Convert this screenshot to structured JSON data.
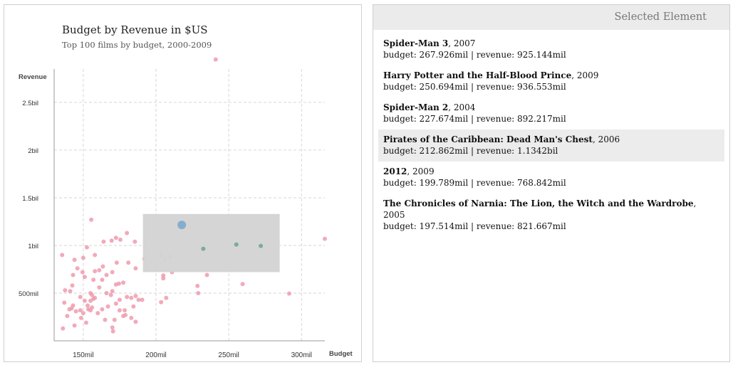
{
  "chart_data": {
    "type": "scatter",
    "title": "Budget by Revenue in $US",
    "subtitle": "Top 100 films by budget, 2000-2009",
    "xlabel": "Budget",
    "ylabel": "Revenue",
    "xlim": [
      130,
      316
    ],
    "ylim": [
      0,
      2.85
    ],
    "x_ticks": [
      {
        "v": 150,
        "label": "150mil"
      },
      {
        "v": 200,
        "label": "200mil"
      },
      {
        "v": 250,
        "label": "250mil"
      },
      {
        "v": 300,
        "label": "300mil"
      }
    ],
    "y_ticks": [
      {
        "v": 0.5,
        "label": "500mil"
      },
      {
        "v": 1,
        "label": "1bil"
      },
      {
        "v": 1.5,
        "label": "1.5bil"
      },
      {
        "v": 2,
        "label": "2bil"
      },
      {
        "v": 2.5,
        "label": "2.5bil"
      }
    ],
    "grid": true,
    "brush": {
      "x": [
        191,
        285
      ],
      "y": [
        0.72,
        1.33
      ]
    },
    "highlighted": [
      {
        "x": 217.7,
        "y": 1.215,
        "r": 6,
        "color": "#85aecd"
      },
      {
        "x": 232.5,
        "y": 0.965,
        "r": 3,
        "color": "#7aab9e"
      },
      {
        "x": 255.2,
        "y": 1.01,
        "r": 3,
        "color": "#7aab9e"
      },
      {
        "x": 272.0,
        "y": 0.995,
        "r": 3,
        "color": "#7aab9e"
      }
    ],
    "points": [
      [
        241,
        2.95
      ],
      [
        316,
        1.07
      ],
      [
        291.5,
        0.495
      ],
      [
        259.5,
        0.595
      ],
      [
        235,
        0.69
      ],
      [
        228.5,
        0.575
      ],
      [
        229,
        0.5
      ],
      [
        205,
        0.685
      ],
      [
        205,
        0.655
      ],
      [
        207,
        0.45
      ],
      [
        203.5,
        0.405
      ],
      [
        211,
        0.72
      ],
      [
        210,
        0.88
      ],
      [
        203.5,
        0.9
      ],
      [
        206,
        0.86
      ],
      [
        185.5,
        1.04
      ],
      [
        192,
        0.86
      ],
      [
        180,
        1.13
      ],
      [
        175.5,
        1.06
      ],
      [
        169.5,
        1.05
      ],
      [
        172.5,
        1.08
      ],
      [
        164,
        1.04
      ],
      [
        155.5,
        1.27
      ],
      [
        152.5,
        0.98
      ],
      [
        158,
        0.9
      ],
      [
        135.5,
        0.9
      ],
      [
        144,
        0.85
      ],
      [
        150,
        0.87
      ],
      [
        181,
        0.82
      ],
      [
        186,
        0.76
      ],
      [
        173,
        0.82
      ],
      [
        170,
        0.72
      ],
      [
        163.5,
        0.78
      ],
      [
        161,
        0.74
      ],
      [
        166,
        0.69
      ],
      [
        163,
        0.64
      ],
      [
        177.5,
        0.61
      ],
      [
        174.5,
        0.6
      ],
      [
        172.5,
        0.59
      ],
      [
        158,
        0.73
      ],
      [
        149.5,
        0.72
      ],
      [
        146,
        0.76
      ],
      [
        143,
        0.69
      ],
      [
        151,
        0.67
      ],
      [
        157,
        0.64
      ],
      [
        142.5,
        0.58
      ],
      [
        137.5,
        0.53
      ],
      [
        141,
        0.52
      ],
      [
        148,
        0.46
      ],
      [
        155,
        0.5
      ],
      [
        156,
        0.48
      ],
      [
        157,
        0.44
      ],
      [
        155,
        0.42
      ],
      [
        166,
        0.5
      ],
      [
        170,
        0.52
      ],
      [
        169,
        0.48
      ],
      [
        175,
        0.43
      ],
      [
        180,
        0.46
      ],
      [
        183,
        0.45
      ],
      [
        188,
        0.43
      ],
      [
        186,
        0.47
      ],
      [
        190.5,
        0.43
      ],
      [
        184.5,
        0.36
      ],
      [
        178.5,
        0.32
      ],
      [
        177.5,
        0.26
      ],
      [
        172.5,
        0.39
      ],
      [
        167,
        0.36
      ],
      [
        163,
        0.33
      ],
      [
        160,
        0.29
      ],
      [
        156,
        0.35
      ],
      [
        155,
        0.32
      ],
      [
        153,
        0.37
      ],
      [
        150,
        0.29
      ],
      [
        148.5,
        0.24
      ],
      [
        145,
        0.31
      ],
      [
        143,
        0.37
      ],
      [
        142,
        0.34
      ],
      [
        140.5,
        0.33
      ],
      [
        139,
        0.26
      ],
      [
        137,
        0.4
      ],
      [
        136,
        0.13
      ],
      [
        144,
        0.16
      ],
      [
        152,
        0.19
      ],
      [
        165,
        0.22
      ],
      [
        171.5,
        0.22
      ],
      [
        170,
        0.14
      ],
      [
        170.5,
        0.1
      ],
      [
        183,
        0.24
      ],
      [
        186,
        0.2
      ],
      [
        158,
        0.45
      ],
      [
        148,
        0.32
      ],
      [
        161,
        0.56
      ],
      [
        153.5,
        0.33
      ],
      [
        179,
        0.27
      ],
      [
        175,
        0.32
      ],
      [
        151,
        0.42
      ]
    ]
  },
  "side": {
    "header": "Selected Element",
    "items": [
      {
        "title": "Spider-Man 3",
        "year": ", 2007",
        "details": "budget: 267.926mil | revenue: 925.144mil",
        "active": false
      },
      {
        "title": "Harry Potter and the Half-Blood Prince",
        "year": ", 2009",
        "details": "budget: 250.694mil | revenue: 936.553mil",
        "active": false
      },
      {
        "title": "Spider-Man 2",
        "year": ", 2004",
        "details": "budget: 227.674mil | revenue: 892.217mil",
        "active": false
      },
      {
        "title": "Pirates of the Caribbean: Dead Man's Chest",
        "year": ", 2006",
        "details": "budget: 212.862mil | revenue: 1.1342bil",
        "active": true
      },
      {
        "title": "2012",
        "year": ", 2009",
        "details": "budget: 199.789mil | revenue: 768.842mil",
        "active": false
      },
      {
        "title": "The Chronicles of Narnia: The Lion, the Witch and the Wardrobe",
        "year": ", 2005",
        "details": "budget: 197.514mil | revenue: 821.667mil",
        "active": false
      }
    ]
  },
  "colors": {
    "point": "#ee9bae",
    "grid": "#d6d6d6",
    "brush": "#d3d3d3",
    "axis": "#999999"
  }
}
